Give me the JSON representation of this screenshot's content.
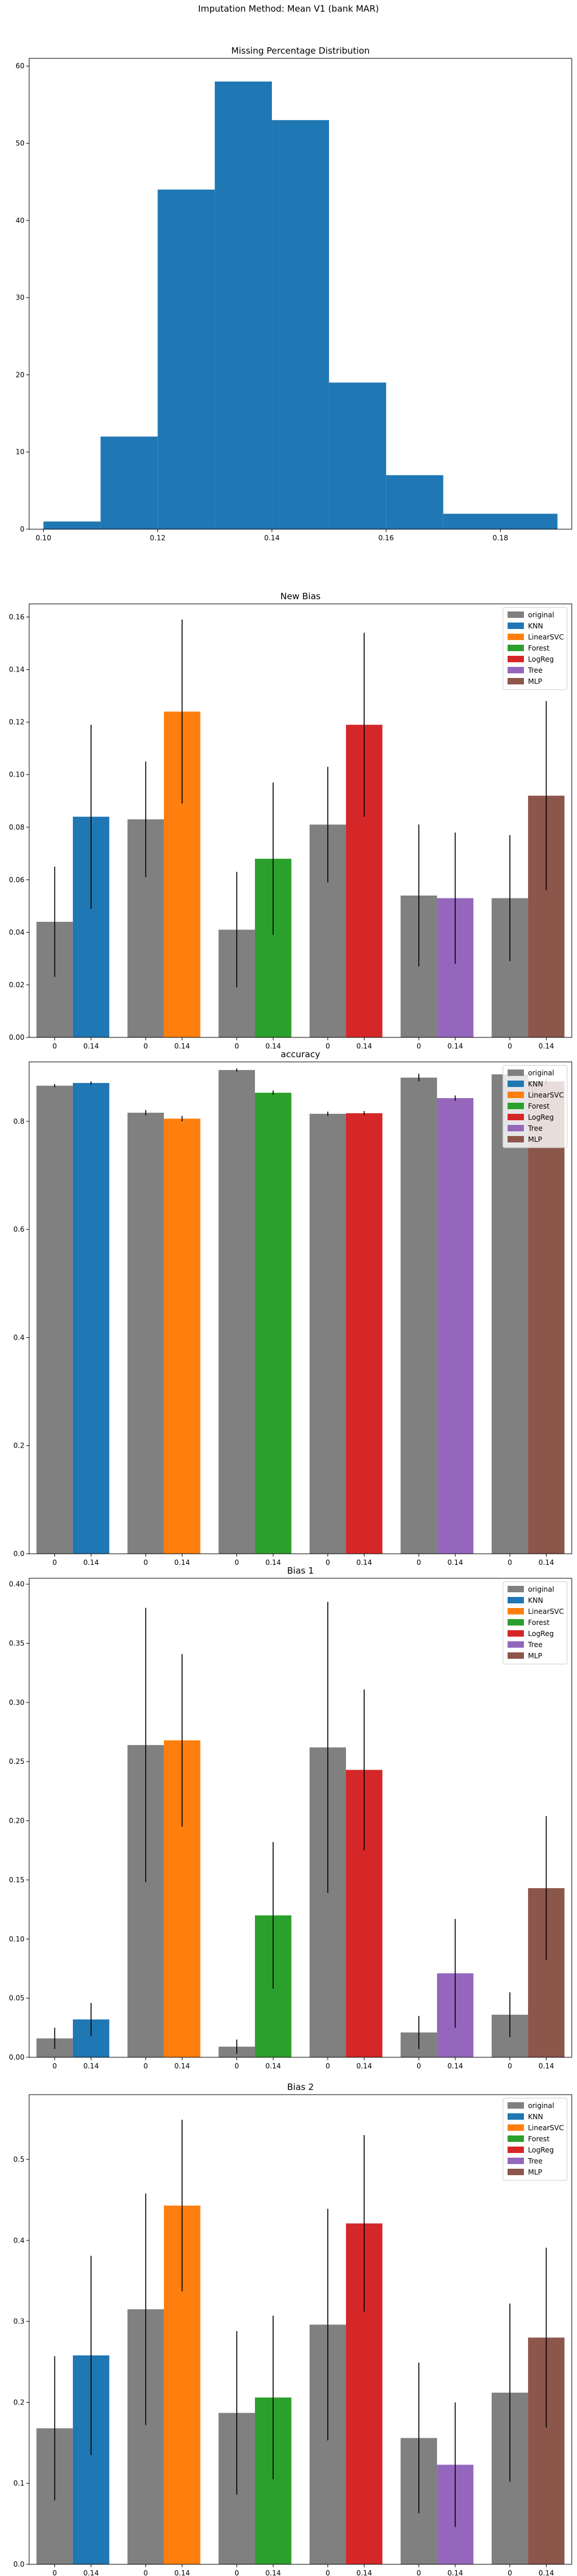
{
  "figure": {
    "suptitle": "Imputation Method: Mean V1 (bank MAR)"
  },
  "colors": {
    "original": "#808080",
    "KNN": "#1f77b4",
    "LinearSVC": "#ff7f0e",
    "Forest": "#2ca02c",
    "LogReg": "#d62728",
    "Tree": "#9467bd",
    "MLP": "#8c564b"
  },
  "chart_data": [
    {
      "type": "bar",
      "subtype": "histogram",
      "title": "Missing Percentage Distribution",
      "xlabel": "",
      "ylabel": "",
      "xlim": [
        0.0975,
        0.1925
      ],
      "ylim": [
        0,
        61
      ],
      "xticks": [
        "0.10",
        "0.12",
        "0.14",
        "0.16",
        "0.18"
      ],
      "yticks": [
        "0",
        "10",
        "20",
        "30",
        "40",
        "50",
        "60"
      ],
      "bins": [
        {
          "x0": 0.1,
          "x1": 0.11,
          "count": 1
        },
        {
          "x0": 0.11,
          "x1": 0.12,
          "count": 12
        },
        {
          "x0": 0.12,
          "x1": 0.13,
          "count": 44
        },
        {
          "x0": 0.13,
          "x1": 0.14,
          "count": 58
        },
        {
          "x0": 0.14,
          "x1": 0.15,
          "count": 53
        },
        {
          "x0": 0.15,
          "x1": 0.16,
          "count": 19
        },
        {
          "x0": 0.16,
          "x1": 0.17,
          "count": 7
        },
        {
          "x0": 0.17,
          "x1": 0.19,
          "count": 2
        }
      ],
      "color": "#1f77b4",
      "grid": false
    },
    {
      "type": "bar",
      "title": "New Bias",
      "ylim": [
        0,
        0.165
      ],
      "yticks": [
        "0.00",
        "0.02",
        "0.04",
        "0.06",
        "0.08",
        "0.10",
        "0.12",
        "0.14",
        "0.16"
      ],
      "legend": {
        "position": "top-right",
        "entries": [
          "original",
          "KNN",
          "LinearSVC",
          "Forest",
          "LogReg",
          "Tree",
          "MLP"
        ]
      },
      "groups": [
        {
          "model": "KNN",
          "ticks": [
            "0",
            "0.14"
          ],
          "original": {
            "value": 0.044,
            "err": 0.021
          },
          "imputed": {
            "value": 0.084,
            "err": 0.035
          }
        },
        {
          "model": "LinearSVC",
          "ticks": [
            "0",
            "0.14"
          ],
          "original": {
            "value": 0.083,
            "err": 0.022
          },
          "imputed": {
            "value": 0.124,
            "err": 0.035
          }
        },
        {
          "model": "Forest",
          "ticks": [
            "0",
            "0.14"
          ],
          "original": {
            "value": 0.041,
            "err": 0.022
          },
          "imputed": {
            "value": 0.068,
            "err": 0.029
          }
        },
        {
          "model": "LogReg",
          "ticks": [
            "0",
            "0.14"
          ],
          "original": {
            "value": 0.081,
            "err": 0.022
          },
          "imputed": {
            "value": 0.119,
            "err": 0.035
          }
        },
        {
          "model": "Tree",
          "ticks": [
            "0",
            "0.14"
          ],
          "original": {
            "value": 0.054,
            "err": 0.027
          },
          "imputed": {
            "value": 0.053,
            "err": 0.025
          }
        },
        {
          "model": "MLP",
          "ticks": [
            "0",
            "0.14"
          ],
          "original": {
            "value": 0.053,
            "err": 0.024
          },
          "imputed": {
            "value": 0.092,
            "err": 0.036
          }
        }
      ]
    },
    {
      "type": "bar",
      "title": "accuracy",
      "ylim": [
        0,
        0.91
      ],
      "yticks": [
        "0.0",
        "0.2",
        "0.4",
        "0.6",
        "0.8"
      ],
      "legend": {
        "position": "top-right",
        "entries": [
          "original",
          "KNN",
          "LinearSVC",
          "Forest",
          "LogReg",
          "Tree",
          "MLP"
        ]
      },
      "groups": [
        {
          "model": "KNN",
          "ticks": [
            "0",
            "0.14"
          ],
          "original": {
            "value": 0.866,
            "err": 0.003
          },
          "imputed": {
            "value": 0.871,
            "err": 0.003
          }
        },
        {
          "model": "LinearSVC",
          "ticks": [
            "0",
            "0.14"
          ],
          "original": {
            "value": 0.816,
            "err": 0.005
          },
          "imputed": {
            "value": 0.805,
            "err": 0.005
          }
        },
        {
          "model": "Forest",
          "ticks": [
            "0",
            "0.14"
          ],
          "original": {
            "value": 0.895,
            "err": 0.003
          },
          "imputed": {
            "value": 0.853,
            "err": 0.004
          }
        },
        {
          "model": "LogReg",
          "ticks": [
            "0",
            "0.14"
          ],
          "original": {
            "value": 0.814,
            "err": 0.004
          },
          "imputed": {
            "value": 0.815,
            "err": 0.004
          }
        },
        {
          "model": "Tree",
          "ticks": [
            "0",
            "0.14"
          ],
          "original": {
            "value": 0.881,
            "err": 0.007
          },
          "imputed": {
            "value": 0.843,
            "err": 0.005
          }
        },
        {
          "model": "MLP",
          "ticks": [
            "0",
            "0.14"
          ],
          "original": {
            "value": 0.887,
            "err": 0.005
          },
          "imputed": {
            "value": 0.874,
            "err": 0.005
          }
        }
      ]
    },
    {
      "type": "bar",
      "title": "Bias 1",
      "ylim": [
        0,
        0.405
      ],
      "yticks": [
        "0.00",
        "0.05",
        "0.10",
        "0.15",
        "0.20",
        "0.25",
        "0.30",
        "0.35",
        "0.40"
      ],
      "legend": {
        "position": "top-right",
        "entries": [
          "original",
          "KNN",
          "LinearSVC",
          "Forest",
          "LogReg",
          "Tree",
          "MLP"
        ]
      },
      "groups": [
        {
          "model": "KNN",
          "ticks": [
            "0",
            "0.14"
          ],
          "original": {
            "value": 0.016,
            "err": 0.009
          },
          "imputed": {
            "value": 0.032,
            "err": 0.014
          }
        },
        {
          "model": "LinearSVC",
          "ticks": [
            "0",
            "0.14"
          ],
          "original": {
            "value": 0.264,
            "err": 0.116
          },
          "imputed": {
            "value": 0.268,
            "err": 0.073
          }
        },
        {
          "model": "Forest",
          "ticks": [
            "0",
            "0.14"
          ],
          "original": {
            "value": 0.009,
            "err": 0.006
          },
          "imputed": {
            "value": 0.12,
            "err": 0.062
          }
        },
        {
          "model": "LogReg",
          "ticks": [
            "0",
            "0.14"
          ],
          "original": {
            "value": 0.262,
            "err": 0.123
          },
          "imputed": {
            "value": 0.243,
            "err": 0.068
          }
        },
        {
          "model": "Tree",
          "ticks": [
            "0",
            "0.14"
          ],
          "original": {
            "value": 0.021,
            "err": 0.014
          },
          "imputed": {
            "value": 0.071,
            "err": 0.046
          }
        },
        {
          "model": "MLP",
          "ticks": [
            "0",
            "0.14"
          ],
          "original": {
            "value": 0.036,
            "err": 0.019
          },
          "imputed": {
            "value": 0.143,
            "err": 0.061
          }
        }
      ]
    },
    {
      "type": "bar",
      "title": "Bias 2",
      "ylim": [
        0,
        0.58
      ],
      "yticks": [
        "0.0",
        "0.1",
        "0.2",
        "0.3",
        "0.4",
        "0.5"
      ],
      "legend": {
        "position": "top-right",
        "entries": [
          "original",
          "KNN",
          "LinearSVC",
          "Forest",
          "LogReg",
          "Tree",
          "MLP"
        ]
      },
      "groups": [
        {
          "model": "KNN",
          "ticks": [
            "0",
            "0.14"
          ],
          "original": {
            "value": 0.168,
            "err": 0.089
          },
          "imputed": {
            "value": 0.258,
            "err": 0.123
          }
        },
        {
          "model": "LinearSVC",
          "ticks": [
            "0",
            "0.14"
          ],
          "original": {
            "value": 0.315,
            "err": 0.143
          },
          "imputed": {
            "value": 0.443,
            "err": 0.106
          }
        },
        {
          "model": "Forest",
          "ticks": [
            "0",
            "0.14"
          ],
          "original": {
            "value": 0.187,
            "err": 0.101
          },
          "imputed": {
            "value": 0.206,
            "err": 0.101
          }
        },
        {
          "model": "LogReg",
          "ticks": [
            "0",
            "0.14"
          ],
          "original": {
            "value": 0.296,
            "err": 0.143
          },
          "imputed": {
            "value": 0.421,
            "err": 0.109
          }
        },
        {
          "model": "Tree",
          "ticks": [
            "0",
            "0.14"
          ],
          "original": {
            "value": 0.156,
            "err": 0.093
          },
          "imputed": {
            "value": 0.123,
            "err": 0.077
          }
        },
        {
          "model": "MLP",
          "ticks": [
            "0",
            "0.14"
          ],
          "original": {
            "value": 0.212,
            "err": 0.11
          },
          "imputed": {
            "value": 0.28,
            "err": 0.111
          }
        }
      ]
    }
  ]
}
